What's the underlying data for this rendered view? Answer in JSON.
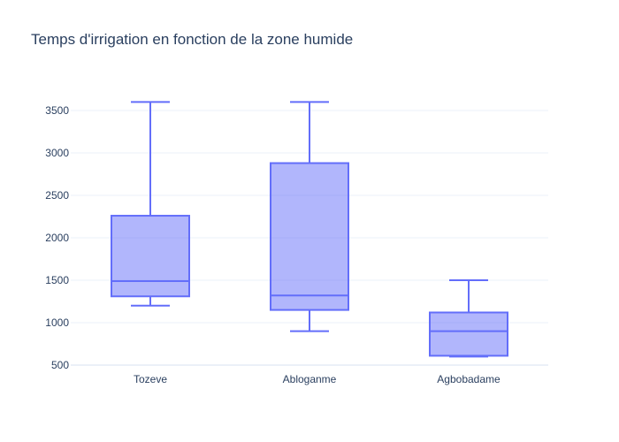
{
  "chart_data": {
    "type": "box",
    "title": "Temps d'irrigation en fonction de la zone humide",
    "xlabel": "",
    "ylabel": "",
    "categories": [
      "Tozeve",
      "Abloganme",
      "Agbobadame"
    ],
    "boxes": [
      {
        "category": "Tozeve",
        "min": 1200,
        "q1": 1310,
        "median": 1490,
        "q3": 2260,
        "max": 3600
      },
      {
        "category": "Abloganme",
        "min": 900,
        "q1": 1150,
        "median": 1320,
        "q3": 2880,
        "max": 3600
      },
      {
        "category": "Agbobadame",
        "min": 600,
        "q1": 610,
        "median": 900,
        "q3": 1120,
        "max": 1500
      }
    ],
    "y_ticks": [
      500,
      1000,
      1500,
      2000,
      2500,
      3000,
      3500
    ],
    "y_tick_labels": [
      "500",
      "1000",
      "1500",
      "2000",
      "2500",
      "3000",
      "3500"
    ],
    "ylim": [
      500,
      3800
    ],
    "grid": true,
    "legend": "none",
    "colors": {
      "box_line": "#636efa",
      "box_fill": "rgba(99,110,250,0.5)"
    }
  }
}
